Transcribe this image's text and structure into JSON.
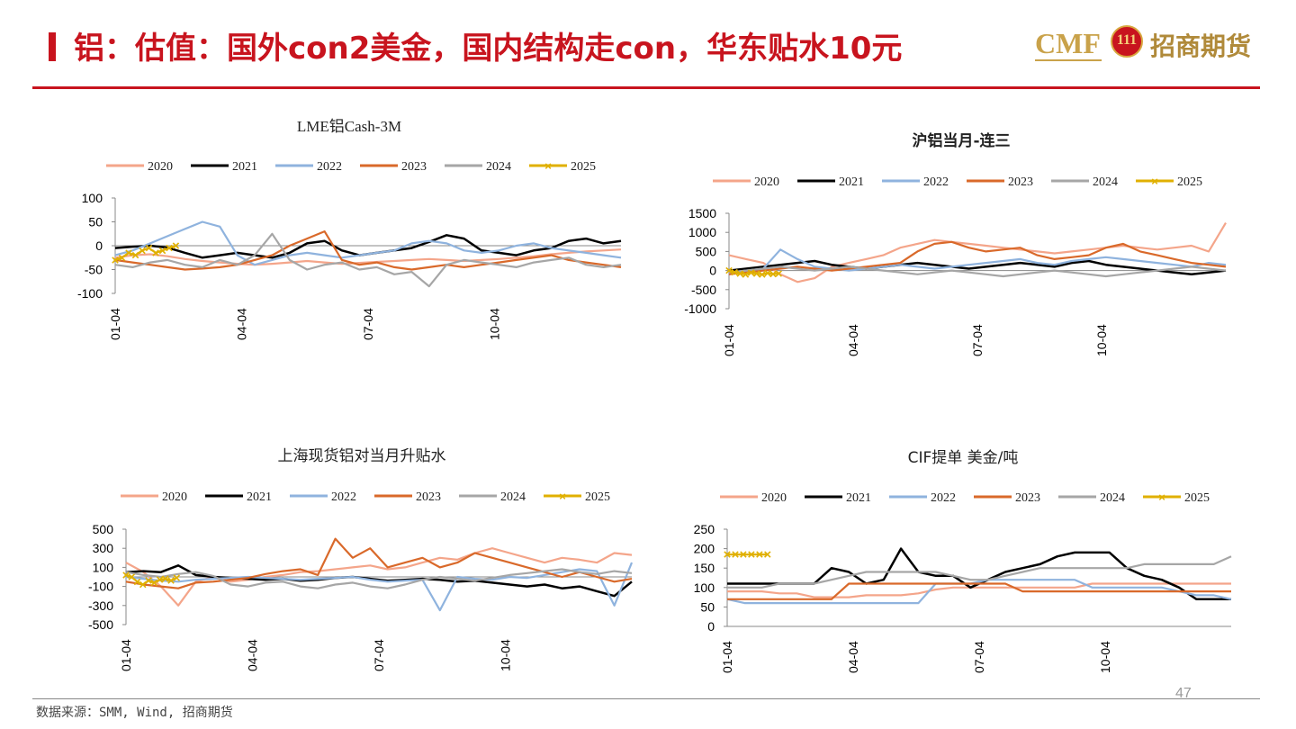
{
  "header": {
    "title": "铝：估值：国外con2美金，国内结构走con，华东贴水10元",
    "logo_latin": "CMF",
    "logo_emblem": "111",
    "logo_cn": "招商期货"
  },
  "footer": {
    "source": "数据来源：SMM, Wind, 招商期货",
    "page_number": "47"
  },
  "colors": {
    "2020": "#f4a58a",
    "2021": "#000000",
    "2022": "#8fb3de",
    "2023": "#d9692a",
    "2024": "#a6a6a6",
    "2025": "#e0b000",
    "accent": "#c8141e"
  },
  "chart_data": [
    {
      "type": "line",
      "title": "LME铝Cash-3M",
      "legend": [
        "2020",
        "2021",
        "2022",
        "2023",
        "2024",
        "2025"
      ],
      "legend_position": "top",
      "ylim": [
        -100,
        100
      ],
      "yticks": [
        "100",
        "50",
        "0",
        "-50",
        "-100"
      ],
      "xticks": [
        "01-04",
        "04-04",
        "07-04",
        "10-04"
      ],
      "series": [
        {
          "name": "2020",
          "x_range": [
            0,
            1
          ],
          "values": [
            -25,
            -20,
            -18,
            -22,
            -28,
            -32,
            -35,
            -38,
            -40,
            -38,
            -35,
            -32,
            -35,
            -38,
            -36,
            -34,
            -32,
            -30,
            -28,
            -30,
            -32,
            -30,
            -28,
            -25,
            -22,
            -18,
            -15,
            -12,
            -10,
            -8
          ]
        },
        {
          "name": "2021",
          "x_range": [
            0,
            1
          ],
          "values": [
            -5,
            -2,
            0,
            -4,
            -15,
            -25,
            -20,
            -15,
            -20,
            -25,
            -15,
            5,
            10,
            -10,
            -20,
            -15,
            -10,
            -5,
            8,
            22,
            15,
            -10,
            -15,
            -20,
            -10,
            -5,
            10,
            15,
            5,
            10
          ]
        },
        {
          "name": "2022",
          "x_range": [
            0,
            1
          ],
          "values": [
            -20,
            -10,
            5,
            20,
            35,
            50,
            40,
            -20,
            -40,
            -30,
            -20,
            -15,
            -20,
            -25,
            -20,
            -15,
            -10,
            5,
            10,
            5,
            -10,
            -15,
            -10,
            0,
            5,
            -5,
            -10,
            -15,
            -20,
            -25
          ]
        },
        {
          "name": "2023",
          "x_range": [
            0,
            1
          ],
          "values": [
            -30,
            -35,
            -40,
            -45,
            -50,
            -48,
            -45,
            -40,
            -30,
            -20,
            0,
            15,
            30,
            -30,
            -40,
            -35,
            -45,
            -50,
            -45,
            -40,
            -45,
            -40,
            -35,
            -30,
            -25,
            -20,
            -30,
            -35,
            -40,
            -45
          ]
        },
        {
          "name": "2024",
          "x_range": [
            0,
            1
          ],
          "values": [
            -40,
            -45,
            -35,
            -30,
            -40,
            -45,
            -30,
            -40,
            -20,
            25,
            -30,
            -50,
            -40,
            -35,
            -50,
            -45,
            -60,
            -55,
            -85,
            -40,
            -30,
            -35,
            -40,
            -45,
            -35,
            -30,
            -25,
            -40,
            -45,
            -40
          ]
        },
        {
          "name": "2025",
          "x_range": [
            0,
            0.12
          ],
          "values": [
            -30,
            -25,
            -15,
            -20,
            -10,
            -5,
            -15,
            -10,
            -5,
            0
          ]
        }
      ]
    },
    {
      "type": "line",
      "title": "沪铝当月-连三",
      "legend": [
        "2020",
        "2021",
        "2022",
        "2023",
        "2024",
        "2025"
      ],
      "legend_position": "top",
      "ylim": [
        -1000,
        1500
      ],
      "yticks": [
        "1500",
        "1000",
        "500",
        "0",
        "-500",
        "-1000"
      ],
      "xticks": [
        "01-04",
        "04-04",
        "07-04",
        "10-04"
      ],
      "series": [
        {
          "name": "2020",
          "x_range": [
            0,
            1
          ],
          "values": [
            400,
            300,
            200,
            -100,
            -300,
            -200,
            100,
            200,
            300,
            400,
            600,
            700,
            800,
            750,
            700,
            650,
            600,
            550,
            500,
            450,
            500,
            550,
            600,
            650,
            600,
            550,
            600,
            650,
            500,
            1250
          ]
        },
        {
          "name": "2021",
          "x_range": [
            0,
            1
          ],
          "values": [
            0,
            50,
            100,
            150,
            200,
            250,
            150,
            100,
            50,
            100,
            150,
            200,
            150,
            100,
            50,
            100,
            150,
            200,
            150,
            100,
            200,
            250,
            150,
            100,
            50,
            0,
            -50,
            -100,
            -50,
            0
          ]
        },
        {
          "name": "2022",
          "x_range": [
            0,
            1
          ],
          "values": [
            -50,
            0,
            50,
            550,
            300,
            100,
            50,
            0,
            50,
            100,
            150,
            100,
            50,
            100,
            150,
            200,
            250,
            300,
            200,
            150,
            250,
            300,
            350,
            300,
            250,
            200,
            150,
            100,
            200,
            150
          ]
        },
        {
          "name": "2023",
          "x_range": [
            0,
            1
          ],
          "values": [
            -100,
            -50,
            0,
            50,
            100,
            50,
            0,
            50,
            100,
            150,
            200,
            500,
            700,
            750,
            600,
            500,
            550,
            600,
            400,
            300,
            350,
            400,
            600,
            700,
            500,
            400,
            300,
            200,
            150,
            100
          ]
        },
        {
          "name": "2024",
          "x_range": [
            0,
            1
          ],
          "values": [
            -50,
            0,
            50,
            100,
            50,
            0,
            50,
            100,
            50,
            0,
            -50,
            -100,
            -50,
            0,
            -50,
            -100,
            -150,
            -100,
            -50,
            0,
            -50,
            -100,
            -150,
            -100,
            -50,
            0,
            50,
            100,
            50,
            0
          ]
        },
        {
          "name": "2025",
          "x_range": [
            0,
            0.1
          ],
          "values": [
            0,
            -50,
            -80,
            -100,
            -60,
            -80,
            -100,
            -70,
            -90,
            -80
          ]
        }
      ]
    },
    {
      "type": "line",
      "title": "上海现货铝对当月升贴水",
      "legend": [
        "2020",
        "2021",
        "2022",
        "2023",
        "2024",
        "2025"
      ],
      "legend_position": "top",
      "ylim": [
        -500,
        500
      ],
      "yticks": [
        "500",
        "300",
        "100",
        "-100",
        "-300",
        "-500"
      ],
      "xticks": [
        "01-04",
        "04-04",
        "07-04",
        "10-04"
      ],
      "series": [
        {
          "name": "2020",
          "x_range": [
            0,
            1
          ],
          "values": [
            150,
            50,
            -100,
            -300,
            -50,
            0,
            -50,
            -30,
            0,
            20,
            50,
            60,
            80,
            100,
            120,
            80,
            100,
            150,
            200,
            180,
            250,
            300,
            250,
            200,
            150,
            200,
            180,
            150,
            250,
            230
          ]
        },
        {
          "name": "2021",
          "x_range": [
            0,
            1
          ],
          "values": [
            50,
            60,
            50,
            120,
            20,
            0,
            -10,
            -20,
            -30,
            -20,
            -40,
            -30,
            -10,
            0,
            -20,
            -40,
            -30,
            -20,
            -30,
            -50,
            -40,
            -60,
            -80,
            -100,
            -80,
            -120,
            -100,
            -150,
            -200,
            -50
          ]
        },
        {
          "name": "2022",
          "x_range": [
            0,
            1
          ],
          "values": [
            0,
            -20,
            -40,
            -50,
            -30,
            -20,
            -10,
            0,
            -10,
            -20,
            -30,
            -20,
            -10,
            0,
            -30,
            -50,
            -40,
            -30,
            -350,
            0,
            -20,
            -30,
            0,
            -10,
            20,
            50,
            80,
            60,
            -300,
            150
          ]
        },
        {
          "name": "2023",
          "x_range": [
            0,
            1
          ],
          "values": [
            -50,
            -80,
            -100,
            -120,
            -60,
            -50,
            -30,
            -10,
            30,
            60,
            80,
            20,
            400,
            200,
            300,
            100,
            150,
            200,
            100,
            150,
            250,
            200,
            150,
            100,
            50,
            0,
            50,
            0,
            -50,
            -20
          ]
        },
        {
          "name": "2024",
          "x_range": [
            0,
            1
          ],
          "values": [
            50,
            20,
            0,
            30,
            50,
            10,
            -80,
            -100,
            -60,
            -50,
            -100,
            -120,
            -80,
            -60,
            -100,
            -120,
            -80,
            -30,
            0,
            -20,
            -40,
            -10,
            20,
            40,
            60,
            80,
            50,
            30,
            60,
            40
          ]
        },
        {
          "name": "2025",
          "x_range": [
            0,
            0.1
          ],
          "values": [
            20,
            0,
            -50,
            -80,
            -40,
            -60,
            -30,
            -20,
            -40,
            -10
          ]
        }
      ]
    },
    {
      "type": "line",
      "title": "CIF提单 美金/吨",
      "legend": [
        "2020",
        "2021",
        "2022",
        "2023",
        "2024",
        "2025"
      ],
      "legend_position": "top",
      "ylim": [
        0,
        250
      ],
      "yticks": [
        "250",
        "200",
        "150",
        "100",
        "50",
        "0"
      ],
      "xticks": [
        "01-04",
        "04-04",
        "07-04",
        "10-04"
      ],
      "series": [
        {
          "name": "2020",
          "x_range": [
            0,
            1
          ],
          "values": [
            90,
            90,
            90,
            85,
            85,
            75,
            75,
            75,
            80,
            80,
            80,
            85,
            95,
            100,
            100,
            100,
            100,
            100,
            100,
            100,
            100,
            110,
            110,
            110,
            110,
            110,
            110,
            110,
            110,
            110
          ]
        },
        {
          "name": "2021",
          "x_range": [
            0,
            1
          ],
          "values": [
            110,
            110,
            110,
            110,
            110,
            110,
            150,
            140,
            110,
            120,
            200,
            140,
            130,
            130,
            100,
            120,
            140,
            150,
            160,
            180,
            190,
            190,
            190,
            150,
            130,
            120,
            100,
            70,
            70,
            70
          ]
        },
        {
          "name": "2022",
          "x_range": [
            0,
            1
          ],
          "values": [
            70,
            60,
            60,
            60,
            60,
            60,
            60,
            60,
            60,
            60,
            60,
            60,
            110,
            110,
            110,
            120,
            120,
            120,
            120,
            120,
            120,
            100,
            100,
            100,
            100,
            100,
            90,
            80,
            80,
            70
          ]
        },
        {
          "name": "2023",
          "x_range": [
            0,
            1
          ],
          "values": [
            70,
            70,
            70,
            70,
            70,
            70,
            70,
            110,
            110,
            110,
            110,
            110,
            110,
            110,
            110,
            110,
            110,
            90,
            90,
            90,
            90,
            90,
            90,
            90,
            90,
            90,
            90,
            90,
            90,
            90
          ]
        },
        {
          "name": "2024",
          "x_range": [
            0,
            1
          ],
          "values": [
            100,
            100,
            100,
            110,
            110,
            110,
            120,
            130,
            140,
            140,
            140,
            140,
            140,
            130,
            120,
            120,
            130,
            140,
            150,
            150,
            150,
            150,
            150,
            150,
            160,
            160,
            160,
            160,
            160,
            180
          ]
        },
        {
          "name": "2025",
          "x_range": [
            0,
            0.08
          ],
          "values": [
            185,
            185,
            185,
            185,
            185,
            185
          ]
        }
      ]
    }
  ]
}
